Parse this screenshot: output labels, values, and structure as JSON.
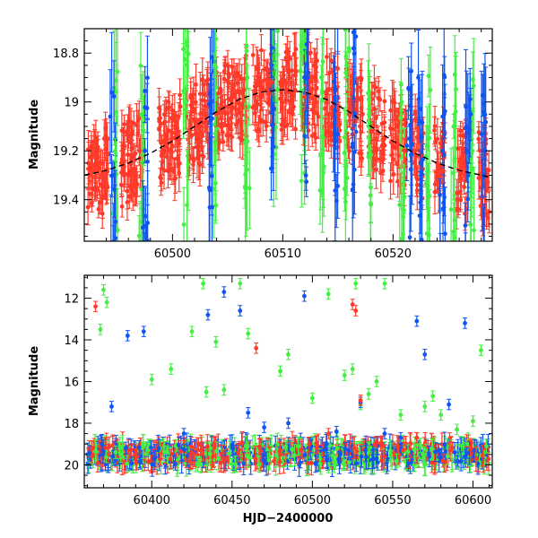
{
  "chart_data": [
    {
      "type": "scatter",
      "panel": "top",
      "title": "",
      "xlabel": "",
      "ylabel": "Magnitude",
      "xlim": [
        60492,
        60529
      ],
      "ylim": [
        19.57,
        18.7
      ],
      "y_inverted": true,
      "grid": false,
      "legend": "none",
      "xticks": [
        60500,
        60510,
        60520
      ],
      "yticks": [
        18.8,
        19,
        19.2,
        19.4
      ],
      "colors": {
        "red": "#ff3a2a",
        "green": "#44ee44",
        "blue": "#1155ee",
        "model": "#000000"
      },
      "model_curve": {
        "style": "dashed",
        "x": [
          60492,
          60494,
          60496,
          60498,
          60500,
          60502,
          60504,
          60506,
          60508,
          60510,
          60512,
          60514,
          60516,
          60518,
          60520,
          60522,
          60524,
          60526,
          60528,
          60529
        ],
        "y": [
          19.3,
          19.28,
          19.25,
          19.21,
          19.16,
          19.1,
          19.04,
          18.99,
          18.96,
          18.95,
          18.96,
          18.99,
          19.04,
          19.1,
          19.16,
          19.21,
          19.25,
          19.28,
          19.3,
          19.31
        ]
      },
      "series": [
        {
          "color": "red",
          "x": [
            60492.5,
            60493,
            60493.5,
            60494,
            60495.5,
            60496,
            60496.5,
            60497,
            60499,
            60499.5,
            60500,
            60500.5,
            60501.5,
            60502,
            60502.5,
            60503,
            60504,
            60504.5,
            60505,
            60505.5,
            60506,
            60506.5,
            60507.5,
            60508,
            60508.5,
            60509,
            60510,
            60510.5,
            60511,
            60512,
            60512.5,
            60513,
            60514,
            60514.5,
            60515,
            60516,
            60516.5,
            60517,
            60518,
            60518.5,
            60519,
            60520,
            60520.5,
            60521,
            60522,
            60522.5,
            60524,
            60524.5,
            60526,
            60526.5,
            60528,
            60528.5
          ],
          "y": [
            19.3,
            19.35,
            19.25,
            19.28,
            19.25,
            19.3,
            19.22,
            19.2,
            19.22,
            19.15,
            19.18,
            19.12,
            19.12,
            19.08,
            19.1,
            19.05,
            19.05,
            19.0,
            19.02,
            18.98,
            19.0,
            18.95,
            18.97,
            18.93,
            18.95,
            18.92,
            18.93,
            18.95,
            18.97,
            18.98,
            18.96,
            19.0,
            19.0,
            19.02,
            19.05,
            19.05,
            19.08,
            19.1,
            19.12,
            19.15,
            19.18,
            19.18,
            19.22,
            19.2,
            19.25,
            19.22,
            19.25,
            19.28,
            19.28,
            19.3,
            19.3,
            19.32
          ]
        },
        {
          "color": "green",
          "x": [
            60494.8,
            60497.2,
            60501.2,
            60503.8,
            60506.8,
            60509.3,
            60511.8,
            60513.5,
            60515.8,
            60517.8,
            60520.8,
            60523.2,
            60525.5,
            60527.2
          ],
          "y": [
            19.2,
            19.05,
            19.0,
            18.85,
            18.9,
            18.85,
            18.8,
            18.9,
            18.85,
            19.1,
            19.0,
            19.15,
            19.1,
            19.2
          ]
        },
        {
          "color": "blue",
          "x": [
            60494.6,
            60497.5,
            60503.5,
            60509.0,
            60512.2,
            60514.8,
            60516.5,
            60521.5,
            60522.5,
            60524.5,
            60526.8,
            60528.2
          ],
          "y": [
            19.3,
            19.2,
            19.0,
            18.85,
            18.9,
            18.95,
            19.05,
            19.15,
            19.25,
            19.2,
            19.3,
            19.3
          ]
        }
      ]
    },
    {
      "type": "scatter",
      "panel": "bottom",
      "title": "",
      "xlabel": "HJD−2400000",
      "ylabel": "Magnitude",
      "xlim": [
        60358,
        60612
      ],
      "ylim": [
        21.1,
        10.9
      ],
      "y_inverted": true,
      "grid": false,
      "legend": "none",
      "xticks": [
        60400,
        60450,
        60500,
        60550,
        60600
      ],
      "yticks": [
        12,
        14,
        16,
        18,
        20
      ],
      "colors": {
        "red": "#ff3a2a",
        "green": "#44ee44",
        "blue": "#1155ee"
      },
      "series": [
        {
          "color": "green",
          "x": [
            60368,
            60370,
            60372,
            60400,
            60412,
            60425,
            60432,
            60434,
            60440,
            60445,
            60455,
            60460,
            60480,
            60485,
            60500,
            60510,
            60520,
            60525,
            60527,
            60530,
            60535,
            60540,
            60545,
            60555,
            60570,
            60575,
            60580,
            60590,
            60600,
            60605
          ],
          "y": [
            13.5,
            11.6,
            12.2,
            15.9,
            15.4,
            13.6,
            11.3,
            16.5,
            14.1,
            16.4,
            11.3,
            13.7,
            15.5,
            14.7,
            16.8,
            11.8,
            15.7,
            15.4,
            11.3,
            17.1,
            16.6,
            16.0,
            11.3,
            17.6,
            17.2,
            16.7,
            17.6,
            18.3,
            17.9,
            14.5
          ]
        },
        {
          "color": "blue",
          "x": [
            60375,
            60385,
            60395,
            60420,
            60435,
            60445,
            60455,
            60460,
            60470,
            60485,
            60495,
            60515,
            60530,
            60545,
            60555,
            60565,
            60570,
            60585,
            60595
          ],
          "y": [
            17.2,
            13.8,
            13.6,
            18.5,
            12.8,
            11.7,
            12.6,
            17.5,
            18.2,
            18.0,
            11.9,
            18.4,
            17.0,
            18.5,
            18.7,
            13.1,
            14.7,
            17.1,
            13.2
          ]
        },
        {
          "color": "red",
          "x": [
            60365,
            60465,
            60510,
            60525,
            60527,
            60530,
            60540,
            60565
          ],
          "y": [
            12.4,
            14.4,
            18.5,
            12.3,
            12.6,
            16.9,
            18.9,
            18.7
          ]
        }
      ],
      "dense_band": {
        "x_start": 60360,
        "x_end": 60610,
        "y_center": 19.5,
        "y_spread": 0.5
      }
    }
  ]
}
